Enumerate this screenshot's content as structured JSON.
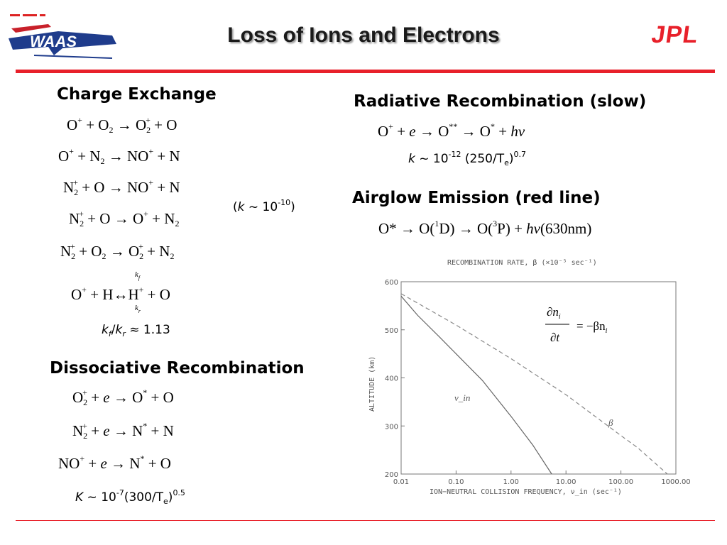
{
  "header": {
    "title": "Loss of Ions and Electrons",
    "logo_left": "WAAS",
    "logo_right": "JPL"
  },
  "charge_exchange": {
    "heading": "Charge Exchange",
    "rate_note": {
      "open": "(",
      "k": "k",
      "tilde": " ~ 10",
      "exp": "-10",
      "close": ")"
    },
    "ratio_note": {
      "kf": "k",
      "f": "f",
      "slash": "/",
      "kr": "k",
      "r": "r",
      "approx": " ≈ 1.13"
    }
  },
  "dissociative_recombination": {
    "heading": "Dissociative Recombination",
    "rate_note": {
      "K": "K",
      "a": " ~ 10",
      "exp": "-7",
      "b": "(300/T",
      "sub": "e",
      "c": ")",
      "exp2": "0.5"
    }
  },
  "radiative_recombination": {
    "heading": "Radiative Recombination (slow)",
    "rate_note": {
      "k": "k",
      "a": " ~ 10",
      "exp": "-12",
      "b": " (250/T",
      "sub": "e",
      "c": ")",
      "exp2": "0.7"
    }
  },
  "airglow": {
    "heading": "Airglow Emission (red line)"
  },
  "chart_data": {
    "type": "line",
    "title": "RECOMBINATION RATE, β (×10⁻⁵ sec⁻¹)",
    "xlabel": "ION−NEUTRAL COLLISION FREQUENCY, ν_in (sec⁻¹)",
    "ylabel": "ALTITUDE (km)",
    "x_scale": "log",
    "xlim": [
      0.01,
      1000
    ],
    "ylim": [
      200,
      600
    ],
    "x_ticks": [
      "0.01",
      "0.10",
      "1.00",
      "10.00",
      "100.00",
      "1000.00"
    ],
    "y_ticks": [
      "600",
      "500",
      "400",
      "300",
      "200"
    ],
    "equation_label": "∂n_i/∂t = −βn_i",
    "series": [
      {
        "name": "ν_in",
        "style": "solid",
        "color": "#666666",
        "points": [
          [
            0.01,
            570
          ],
          [
            0.02,
            530
          ],
          [
            0.05,
            485
          ],
          [
            0.1,
            450
          ],
          [
            0.3,
            395
          ],
          [
            1.0,
            320
          ],
          [
            2.5,
            260
          ],
          [
            5.5,
            200
          ]
        ]
      },
      {
        "name": "β",
        "style": "dashed",
        "color": "#888888",
        "points": [
          [
            0.01,
            575
          ],
          [
            0.1,
            510
          ],
          [
            1.0,
            440
          ],
          [
            10.0,
            365
          ],
          [
            100.0,
            280
          ],
          [
            200.0,
            255
          ],
          [
            700.0,
            200
          ]
        ]
      }
    ]
  }
}
